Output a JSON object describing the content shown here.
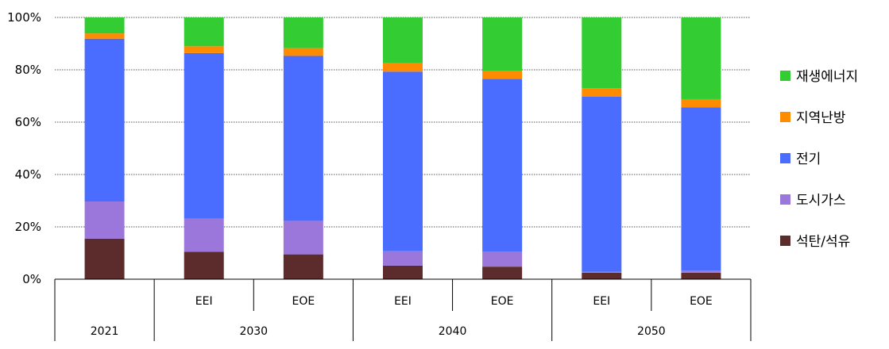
{
  "chart_data": {
    "type": "bar",
    "stacked": true,
    "normalized": true,
    "ylim": [
      0,
      100
    ],
    "y_ticks": [
      "0%",
      "20%",
      "40%",
      "60%",
      "80%",
      "100%"
    ],
    "grid": true,
    "legend_position": "right",
    "categories": [
      {
        "group": "2021",
        "sub": ""
      },
      {
        "group": "2030",
        "sub": "EEI"
      },
      {
        "group": "2030",
        "sub": "EOE"
      },
      {
        "group": "2040",
        "sub": "EEI"
      },
      {
        "group": "2040",
        "sub": "EOE"
      },
      {
        "group": "2050",
        "sub": "EEI"
      },
      {
        "group": "2050",
        "sub": "EOE"
      }
    ],
    "groups": [
      {
        "label": "2021",
        "span": 1
      },
      {
        "label": "2030",
        "span": 2
      },
      {
        "label": "2040",
        "span": 2
      },
      {
        "label": "2050",
        "span": 2
      }
    ],
    "series": [
      {
        "name": "석탄/석유",
        "color": "#5c2b2b",
        "values": [
          15.5,
          10.5,
          9.5,
          5.2,
          4.8,
          2.5,
          2.5
        ]
      },
      {
        "name": "도시가스",
        "color": "#9b77dc",
        "values": [
          14.2,
          12.7,
          12.8,
          5.5,
          5.7,
          0.3,
          0.8
        ]
      },
      {
        "name": "전기",
        "color": "#4a6cff",
        "values": [
          62.2,
          63.2,
          63.0,
          68.6,
          66.0,
          66.9,
          62.3
        ]
      },
      {
        "name": "지역난방",
        "color": "#ff8c00",
        "values": [
          2.0,
          2.6,
          3.0,
          3.3,
          3.0,
          3.3,
          3.2
        ]
      },
      {
        "name": "재생에너지",
        "color": "#33cc33",
        "values": [
          6.1,
          11.0,
          11.7,
          17.4,
          20.5,
          27.0,
          31.2
        ]
      }
    ]
  }
}
